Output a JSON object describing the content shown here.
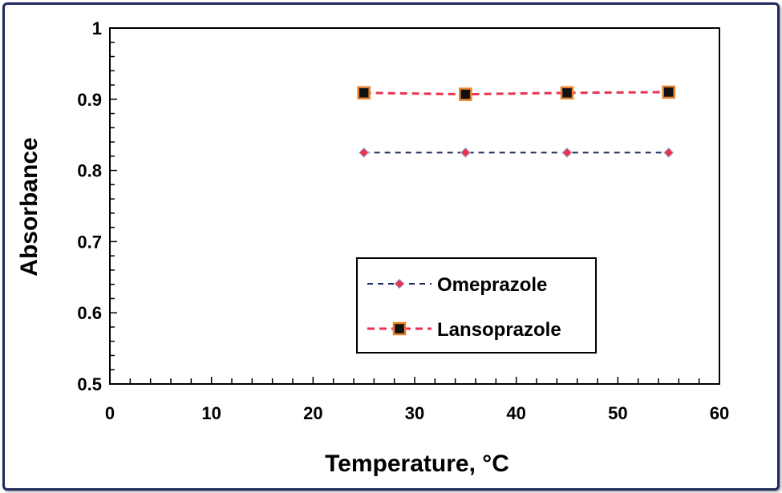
{
  "chart_data": {
    "type": "line",
    "title": "",
    "xlabel": "Temperature, °C",
    "ylabel": "Absorbance",
    "xlim": [
      0,
      60
    ],
    "ylim": [
      0.5,
      1
    ],
    "xticks": [
      "0",
      "10",
      "20",
      "30",
      "40",
      "50",
      "60"
    ],
    "yticks": [
      "0.5",
      "0.6",
      "0.7",
      "0.8",
      "0.9",
      "1"
    ],
    "grid": false,
    "legend": "inside-center-right",
    "series": [
      {
        "name": "Omeprazole",
        "x": [
          25,
          35,
          45,
          55
        ],
        "y": [
          0.825,
          0.825,
          0.825,
          0.825
        ],
        "line_color": "#1f2a5c",
        "marker_color": "#e8334f",
        "marker": "diamond",
        "line_style": "dashed"
      },
      {
        "name": "Lansoprazole",
        "x": [
          25,
          35,
          45,
          55
        ],
        "y": [
          0.909,
          0.907,
          0.909,
          0.91
        ],
        "line_color": "#e8334f",
        "marker_color": "#111111",
        "marker_edge": "#e8802a",
        "marker": "square",
        "line_style": "dashed"
      }
    ]
  }
}
